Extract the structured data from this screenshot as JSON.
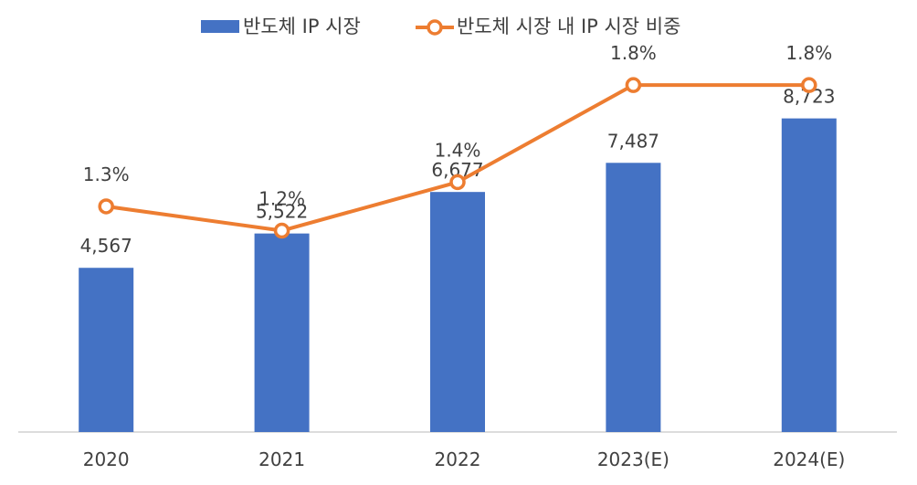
{
  "chart_data": {
    "type": "bar",
    "categories": [
      "2020",
      "2021",
      "2022",
      "2023(E)",
      "2024(E)"
    ],
    "series": [
      {
        "name": "반도체 IP 시장",
        "kind": "bar",
        "color": "#4472C4",
        "values": [
          4567,
          5522,
          6677,
          7487,
          8723
        ],
        "labels": [
          "4,567",
          "5,522",
          "6,677",
          "7,487",
          "8,723"
        ]
      },
      {
        "name": "반도체 시장 내 IP 시장 비중",
        "kind": "line",
        "color": "#ED7D31",
        "values": [
          1.3,
          1.2,
          1.4,
          1.8,
          1.8
        ],
        "labels": [
          "1.3%",
          "1.2%",
          "1.4%",
          "1.8%",
          "1.8%"
        ]
      }
    ],
    "bar_axis": {
      "min": 0,
      "max": 11000
    },
    "line_axis": {
      "min": 0.37,
      "max": 2.0
    },
    "grid": false,
    "legend_position": "top-center"
  }
}
